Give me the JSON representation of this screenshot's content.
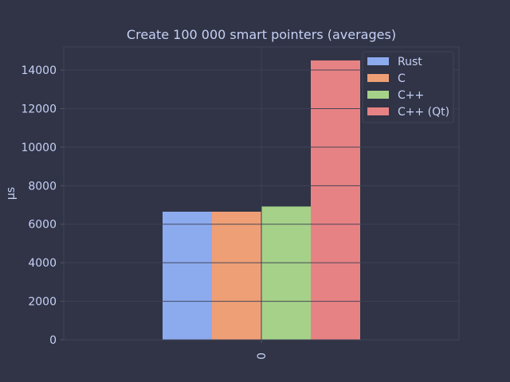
{
  "chart_data": {
    "type": "bar",
    "title": "Create 100 000 smart pointers (averages)",
    "xlabel": "",
    "ylabel": "µs",
    "categories": [
      "0"
    ],
    "ylim": [
      0,
      15200
    ],
    "yticks": [
      0,
      2000,
      4000,
      6000,
      8000,
      10000,
      12000,
      14000
    ],
    "grid": true,
    "legend_position": "top-right",
    "series": [
      {
        "name": "Rust",
        "color": "#8caaee",
        "values": [
          6650
        ]
      },
      {
        "name": "C",
        "color": "#ef9f76",
        "values": [
          6650
        ]
      },
      {
        "name": "C++",
        "color": "#a6d189",
        "values": [
          6920
        ]
      },
      {
        "name": "C++ (Qt)",
        "color": "#e78284",
        "values": [
          14500
        ]
      }
    ]
  },
  "colors": {
    "background": "#303446",
    "text": "#c6d0f5",
    "grid": "#414559",
    "axis": "#51576d"
  }
}
